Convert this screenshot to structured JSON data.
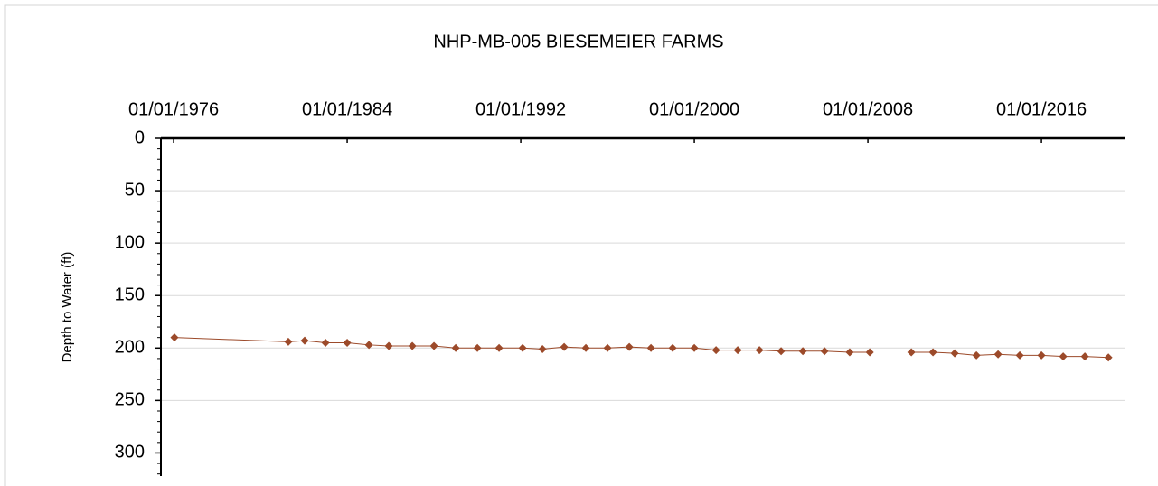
{
  "chart_data": {
    "type": "line",
    "title": "NHP-MB-005 BIESEMEIER FARMS",
    "y_label": "Depth to Water (ft)",
    "y_inverted": true,
    "x_axis_position": "top",
    "grid": true,
    "color": "#9c4a2a",
    "x": [
      "01/15/1976",
      "04/15/1981",
      "01/15/1982",
      "01/01/1983",
      "01/01/1984",
      "01/01/1985",
      "12/01/1985",
      "01/01/1987",
      "01/01/1988",
      "01/01/1989",
      "01/01/1990",
      "01/01/1991",
      "02/01/1992",
      "01/01/1993",
      "01/01/1994",
      "01/01/1995",
      "01/01/1996",
      "01/01/1997",
      "01/01/1998",
      "01/01/1999",
      "01/01/2000",
      "01/01/2001",
      "01/01/2002",
      "01/01/2003",
      "01/01/2004",
      "01/01/2005",
      "01/01/2006",
      "03/01/2007",
      "02/01/2008",
      "01/01/2009",
      "01/01/2010",
      "01/01/2011",
      "01/01/2012",
      "01/01/2013",
      "01/01/2014",
      "01/01/2015",
      "01/01/2016",
      "01/01/2017",
      "01/01/2018",
      "02/01/2019"
    ],
    "values": [
      190,
      194,
      193,
      195,
      195,
      197,
      198,
      198,
      198,
      200,
      200,
      200,
      200,
      201,
      199,
      200,
      200,
      199,
      200,
      200,
      200,
      202,
      202,
      202,
      203,
      203,
      203,
      204,
      204,
      null,
      204,
      204,
      205,
      207,
      206,
      207,
      207,
      208,
      208,
      209
    ],
    "xlim": [
      "06/01/1975",
      "11/15/2019"
    ],
    "xticks": [
      "01/01/1976",
      "01/01/1984",
      "01/01/1992",
      "01/01/2000",
      "01/01/2008",
      "01/01/2016"
    ],
    "ylim": [
      0,
      322
    ],
    "yticks": [
      0,
      50,
      100,
      150,
      200,
      250,
      300
    ]
  }
}
